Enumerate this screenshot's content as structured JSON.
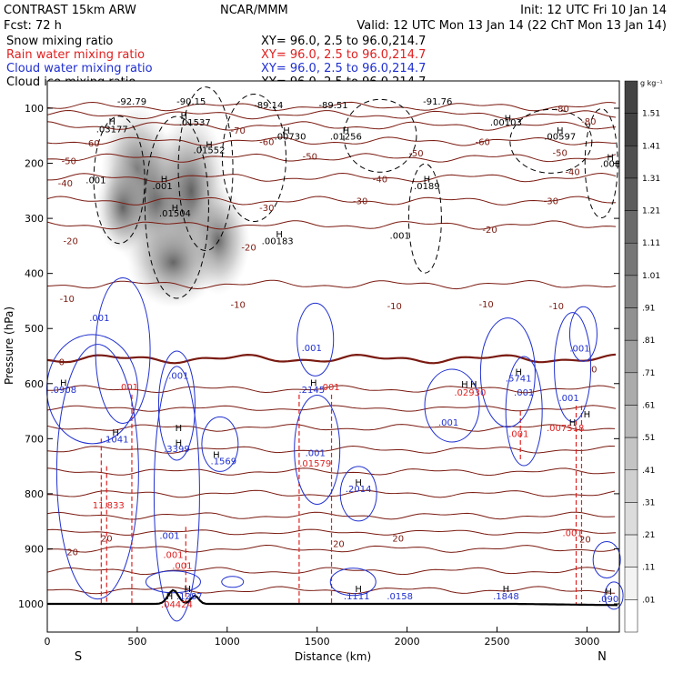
{
  "header": {
    "model": "CONTRAST 15km ARW",
    "fcst": "Fcst:    72 h",
    "institution": "NCAR/MMM",
    "init": "Init: 12 UTC Fri 10 Jan 14",
    "valid": "Valid: 12 UTC Mon 13 Jan 14 (22 ChT Mon 13 Jan 14)"
  },
  "legend": [
    {
      "label": "Snow mixing ratio",
      "xy": "XY=  96.0,  2.5 to  96.0,214.7",
      "color": "#000000"
    },
    {
      "label": "Rain water mixing ratio",
      "xy": "XY=  96.0,  2.5 to  96.0,214.7",
      "color": "#e02020"
    },
    {
      "label": "Cloud water mixing ratio",
      "xy": "XY=  96.0,  2.5 to  96.0,214.7",
      "color": "#2030d0"
    },
    {
      "label": "Cloud ice mixing ratio",
      "xy": "XY=  96.0,  2.5 to  96.0,214.7",
      "color": "#000000"
    }
  ],
  "chart_data": {
    "type": "heatmap",
    "xlabel": "Distance (km)",
    "ylabel": "Pressure (hPa)",
    "xlim": [
      0,
      3180
    ],
    "ylim": [
      1060,
      50
    ],
    "x_ticks": [
      0,
      500,
      1000,
      1500,
      2000,
      2500,
      3000
    ],
    "y_ticks": [
      100,
      200,
      300,
      400,
      500,
      600,
      700,
      800,
      900,
      1000
    ],
    "x_ends": [
      "S",
      "N"
    ],
    "colorbar": {
      "unit": "g kg⁻¹",
      "levels": [
        ".01",
        ".11",
        ".21",
        ".31",
        ".41",
        ".51",
        ".61",
        ".71",
        ".81",
        ".91",
        "1.01",
        "1.11",
        "1.21",
        "1.31",
        "1.41",
        "1.51"
      ],
      "colors": [
        "#ffffff",
        "#f3f3f3",
        "#e8e8e8",
        "#dcdcdc",
        "#d0d0d0",
        "#c4c4c4",
        "#b8b8b8",
        "#ababab",
        "#9e9e9e",
        "#919191",
        "#848484",
        "#777777",
        "#6a6a6a",
        "#5d5d5d",
        "#505050",
        "#434343"
      ]
    },
    "isotherms": [
      {
        "value": -90,
        "p": 97
      },
      {
        "value": -80,
        "p": 112,
        "label": "-80"
      },
      {
        "value": -70,
        "p": 132,
        "label": "-70"
      },
      {
        "value": -60,
        "p": 160,
        "label": "-60"
      },
      {
        "value": -50,
        "p": 190,
        "label": "-50"
      },
      {
        "value": -40,
        "p": 226,
        "label": "-40"
      },
      {
        "value": -30,
        "p": 268,
        "label": "-30"
      },
      {
        "value": -20,
        "p": 312,
        "label": "-20"
      },
      {
        "value": -10,
        "p": 420,
        "label": "-10"
      },
      {
        "value": 0,
        "p": 555,
        "label": "0"
      },
      {
        "value": 10,
        "p": 645
      },
      {
        "value": 20,
        "p": 870,
        "label": "20"
      }
    ],
    "ice_labels": [
      {
        "text": "-92.79",
        "x": 470,
        "p": 87
      },
      {
        "text": "-90.15",
        "x": 800,
        "p": 87
      },
      {
        "text": "-89.14",
        "x": 1230,
        "p": 93
      },
      {
        "text": "-89.51",
        "x": 1590,
        "p": 93
      },
      {
        "text": "-91.76",
        "x": 2170,
        "p": 87
      },
      {
        "text": ".03177",
        "x": 360,
        "p": 137
      },
      {
        "text": ".01537",
        "x": 820,
        "p": 125
      },
      {
        "text": ".00730",
        "x": 1350,
        "p": 150
      },
      {
        "text": ".01256",
        "x": 1660,
        "p": 150
      },
      {
        "text": ".00103",
        "x": 2550,
        "p": 125
      },
      {
        "text": ".00597",
        "x": 2850,
        "p": 150
      },
      {
        "text": ".01552",
        "x": 900,
        "p": 175
      },
      {
        "text": ".001",
        "x": 270,
        "p": 230
      },
      {
        "text": ".001",
        "x": 640,
        "p": 240
      },
      {
        "text": ".01504",
        "x": 710,
        "p": 290
      },
      {
        "text": ".00183",
        "x": 1280,
        "p": 340
      },
      {
        "text": ".0189",
        "x": 2110,
        "p": 240
      },
      {
        "text": ".001",
        "x": 1960,
        "p": 330
      },
      {
        "text": ".008",
        "x": 3130,
        "p": 200
      }
    ],
    "cloud_labels": [
      {
        "text": ".001",
        "x": 290,
        "p": 480
      },
      {
        "text": ".0908",
        "x": 90,
        "p": 610
      },
      {
        "text": ".001",
        "x": 730,
        "p": 585
      },
      {
        "text": ".3399",
        "x": 720,
        "p": 718
      },
      {
        "text": ".1569",
        "x": 980,
        "p": 740
      },
      {
        "text": ".2145",
        "x": 1470,
        "p": 610
      },
      {
        "text": ".001",
        "x": 1470,
        "p": 534
      },
      {
        "text": ".001",
        "x": 1490,
        "p": 725
      },
      {
        "text": ".2014",
        "x": 1730,
        "p": 790
      },
      {
        "text": ".001",
        "x": 2230,
        "p": 670
      },
      {
        "text": ".5741",
        "x": 2620,
        "p": 590
      },
      {
        "text": ".001",
        "x": 2650,
        "p": 615
      },
      {
        "text": ".001",
        "x": 2900,
        "p": 625
      },
      {
        "text": ".001",
        "x": 2960,
        "p": 535
      },
      {
        "text": ".1041",
        "x": 380,
        "p": 700
      },
      {
        "text": ".1111",
        "x": 1720,
        "p": 985
      },
      {
        "text": ".0158",
        "x": 1960,
        "p": 985
      },
      {
        "text": ".1848",
        "x": 2550,
        "p": 985
      },
      {
        "text": ".1287",
        "x": 790,
        "p": 985
      },
      {
        "text": ".001",
        "x": 680,
        "p": 875
      },
      {
        "text": ".090",
        "x": 3120,
        "p": 990
      }
    ],
    "rain_labels": [
      {
        "text": ".001",
        "x": 450,
        "p": 605
      },
      {
        "text": ".01579",
        "x": 1490,
        "p": 744
      },
      {
        "text": ".001",
        "x": 1570,
        "p": 605
      },
      {
        "text": ".02930",
        "x": 2350,
        "p": 615
      },
      {
        "text": ".007518",
        "x": 2880,
        "p": 680
      },
      {
        "text": ".001",
        "x": 2920,
        "p": 870
      },
      {
        "text": "11.833",
        "x": 340,
        "p": 820
      },
      {
        "text": ".04424",
        "x": 720,
        "p": 1000
      },
      {
        "text": ".001",
        "x": 2620,
        "p": 690
      },
      {
        "text": ".001",
        "x": 750,
        "p": 930
      },
      {
        "text": ".001",
        "x": 700,
        "p": 910
      }
    ],
    "temp_labels": [
      {
        "text": "-80",
        "x": 2860,
        "p": 100
      },
      {
        "text": "-80",
        "x": 3010,
        "p": 123
      },
      {
        "text": "-70",
        "x": 1060,
        "p": 140
      },
      {
        "text": "-60",
        "x": 250,
        "p": 163
      },
      {
        "text": "-60",
        "x": 1220,
        "p": 160
      },
      {
        "text": "-60",
        "x": 2420,
        "p": 160
      },
      {
        "text": "-50",
        "x": 120,
        "p": 195
      },
      {
        "text": "-50",
        "x": 1460,
        "p": 187
      },
      {
        "text": "-50",
        "x": 2050,
        "p": 181
      },
      {
        "text": "-50",
        "x": 2850,
        "p": 180
      },
      {
        "text": "-40",
        "x": 100,
        "p": 235
      },
      {
        "text": "-40",
        "x": 1850,
        "p": 228
      },
      {
        "text": "-40",
        "x": 2920,
        "p": 215
      },
      {
        "text": "-30",
        "x": 1220,
        "p": 280
      },
      {
        "text": "-30",
        "x": 1740,
        "p": 268
      },
      {
        "text": "-30",
        "x": 2800,
        "p": 268
      },
      {
        "text": "-20",
        "x": 130,
        "p": 340
      },
      {
        "text": "-20",
        "x": 1120,
        "p": 352
      },
      {
        "text": "-20",
        "x": 2460,
        "p": 320
      },
      {
        "text": "-10",
        "x": 110,
        "p": 445
      },
      {
        "text": "-10",
        "x": 1060,
        "p": 456
      },
      {
        "text": "-10",
        "x": 1930,
        "p": 458
      },
      {
        "text": "-10",
        "x": 2440,
        "p": 455
      },
      {
        "text": "-10",
        "x": 2830,
        "p": 458
      },
      {
        "text": "0",
        "x": 80,
        "p": 560
      },
      {
        "text": "0",
        "x": 3040,
        "p": 573
      },
      {
        "text": "20",
        "x": 140,
        "p": 905
      },
      {
        "text": "20",
        "x": 330,
        "p": 880
      },
      {
        "text": "20",
        "x": 1620,
        "p": 890
      },
      {
        "text": "20",
        "x": 1950,
        "p": 880
      },
      {
        "text": "20",
        "x": 2990,
        "p": 882
      }
    ],
    "h_marks": [
      {
        "x": 360,
        "p": 123
      },
      {
        "x": 760,
        "p": 113
      },
      {
        "x": 900,
        "p": 165
      },
      {
        "x": 1330,
        "p": 140
      },
      {
        "x": 1660,
        "p": 140
      },
      {
        "x": 2560,
        "p": 117
      },
      {
        "x": 2850,
        "p": 140
      },
      {
        "x": 3130,
        "p": 188
      },
      {
        "x": 1290,
        "p": 328
      },
      {
        "x": 2110,
        "p": 228
      },
      {
        "x": 650,
        "p": 228
      },
      {
        "x": 710,
        "p": 280
      },
      {
        "x": 90,
        "p": 598
      },
      {
        "x": 380,
        "p": 688
      },
      {
        "x": 730,
        "p": 707
      },
      {
        "x": 940,
        "p": 728
      },
      {
        "x": 1480,
        "p": 598
      },
      {
        "x": 1730,
        "p": 779
      },
      {
        "x": 2620,
        "p": 578
      },
      {
        "x": 2920,
        "p": 670
      },
      {
        "x": 2320,
        "p": 600
      },
      {
        "x": 2370,
        "p": 600
      },
      {
        "x": 3000,
        "p": 655
      },
      {
        "x": 1730,
        "p": 972
      },
      {
        "x": 2550,
        "p": 972
      },
      {
        "x": 780,
        "p": 972
      },
      {
        "x": 680,
        "p": 985
      },
      {
        "x": 3120,
        "p": 977
      },
      {
        "x": 730,
        "p": 680
      }
    ]
  }
}
